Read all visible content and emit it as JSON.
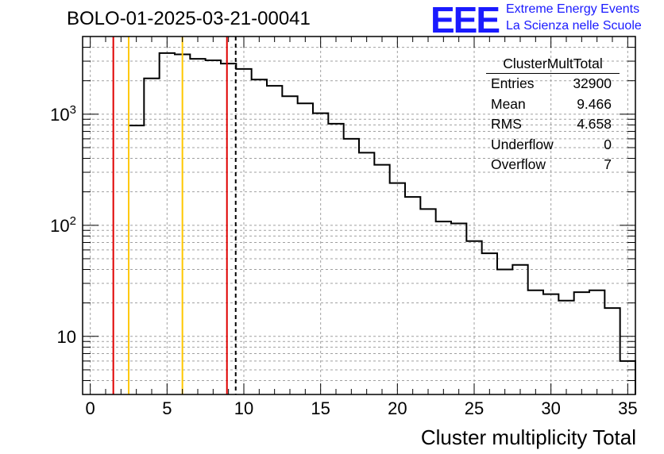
{
  "header": {
    "title": "BOLO-01-2025-03-21-00041",
    "logo_text": "EEE",
    "logo_line1": "Extreme Energy Events",
    "logo_line2": "La Scienza nelle Scuole"
  },
  "stats": {
    "name": "ClusterMultTotal",
    "rows": [
      {
        "label": "Entries",
        "value": "32900"
      },
      {
        "label": "Mean",
        "value": "9.466"
      },
      {
        "label": "RMS",
        "value": "4.658"
      },
      {
        "label": "Underflow",
        "value": "0"
      },
      {
        "label": "Overflow",
        "value": "7"
      }
    ]
  },
  "colors": {
    "frame": "#000000",
    "grid": "#a0a0a0",
    "red_line": "#e00000",
    "yellow_line": "#ffc800",
    "logo": "#1a1aff"
  },
  "chart_data": {
    "type": "histogram",
    "title": "BOLO-01-2025-03-21-00041",
    "xlabel": "Cluster multiplicity Total",
    "ylabel": "",
    "xlim": [
      -0.5,
      35.5
    ],
    "ylim": [
      3,
      5000
    ],
    "yscale": "log",
    "grid": true,
    "x_ticks": [
      0,
      5,
      10,
      15,
      20,
      25,
      30,
      35
    ],
    "y_ticks": [
      {
        "value": 10,
        "label": "10"
      },
      {
        "value": 100,
        "label": "10^2"
      },
      {
        "value": 1000,
        "label": "10^3"
      }
    ],
    "bin_width": 1,
    "bin_centers": [
      3,
      4,
      5,
      6,
      7,
      8,
      9,
      10,
      11,
      12,
      13,
      14,
      15,
      16,
      17,
      18,
      19,
      20,
      21,
      22,
      23,
      24,
      25,
      26,
      27,
      28,
      29,
      30,
      31,
      32,
      33,
      34,
      35
    ],
    "counts": [
      790,
      2100,
      3550,
      3450,
      3150,
      3050,
      2850,
      2550,
      2050,
      1800,
      1450,
      1250,
      1020,
      820,
      600,
      450,
      350,
      240,
      180,
      140,
      108,
      104,
      72,
      56,
      40,
      44,
      26,
      24,
      21,
      25,
      26,
      18,
      6
    ],
    "vertical_lines": [
      {
        "x": 1.5,
        "color": "red",
        "style": "solid"
      },
      {
        "x": 8.9,
        "color": "red",
        "style": "solid"
      },
      {
        "x": 2.5,
        "color": "yellow",
        "style": "solid"
      },
      {
        "x": 6.0,
        "color": "yellow",
        "style": "solid"
      },
      {
        "x": 9.47,
        "color": "black",
        "style": "dashed"
      }
    ]
  }
}
